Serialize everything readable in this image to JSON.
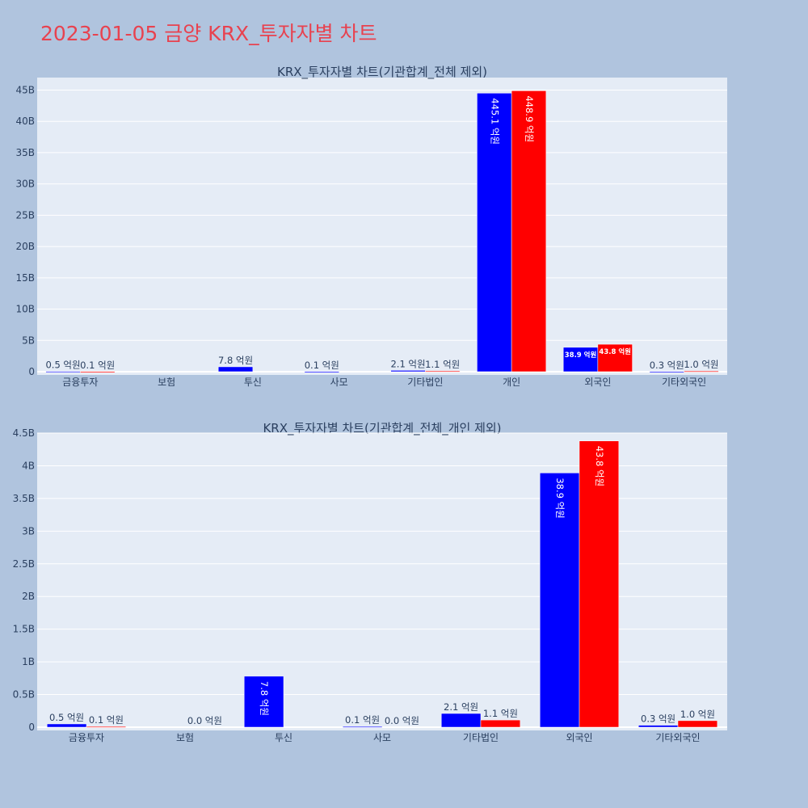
{
  "title": "2023-01-05 금양 KRX_투자자별 차트",
  "colors": {
    "sell": "#0000ff",
    "buy": "#ff0000",
    "plot_bg": "#e5ecf6",
    "page_bg": "#b0c4de",
    "title": "#e8424f"
  },
  "chart_data": [
    {
      "type": "bar",
      "title": "KRX_투자자별 차트(기관합계_전체 제외)",
      "categories": [
        "금융투자",
        "보험",
        "투신",
        "사모",
        "기타법인",
        "개인",
        "외국인",
        "기타외국인"
      ],
      "ylim": [
        0,
        47000000000
      ],
      "y_ticks": [
        0,
        5000000000,
        10000000000,
        15000000000,
        20000000000,
        25000000000,
        30000000000,
        35000000000,
        40000000000,
        45000000000
      ],
      "y_tick_labels": [
        "0",
        "5B",
        "10B",
        "15B",
        "20B",
        "25B",
        "30B",
        "35B",
        "40B",
        "45B"
      ],
      "grid": true,
      "series": [
        {
          "color": "#0000ff",
          "values": [
            50000000,
            0,
            780000000,
            10000000,
            210000000,
            44510000000,
            3890000000,
            30000000
          ],
          "labels": [
            "0.5 억원",
            "",
            "7.8 억원",
            "0.1 억원",
            "2.1 억원",
            "445.1 억원",
            "38.9 억원",
            "0.3 억원"
          ]
        },
        {
          "color": "#ff0000",
          "values": [
            10000000,
            0,
            0,
            0,
            110000000,
            44890000000,
            4380000000,
            100000000
          ],
          "labels": [
            "0.1 억원",
            "",
            "",
            "",
            "1.1 억원",
            "448.9 억원",
            "43.8 억원",
            "1.0 억원"
          ]
        }
      ]
    },
    {
      "type": "bar",
      "title": "KRX_투자자별 차트(기관합계_전체_개인 제외)",
      "categories": [
        "금융투자",
        "보험",
        "투신",
        "사모",
        "기타법인",
        "외국인",
        "기타외국인"
      ],
      "ylim": [
        0,
        4500000000
      ],
      "y_ticks": [
        0,
        500000000,
        1000000000,
        1500000000,
        2000000000,
        2500000000,
        3000000000,
        3500000000,
        4000000000,
        4500000000
      ],
      "y_tick_labels": [
        "0",
        "0.5B",
        "1B",
        "1.5B",
        "2B",
        "2.5B",
        "3B",
        "3.5B",
        "4B",
        "4.5B"
      ],
      "grid": true,
      "series": [
        {
          "color": "#0000ff",
          "values": [
            50000000,
            0,
            780000000,
            10000000,
            210000000,
            3890000000,
            30000000
          ],
          "labels": [
            "0.5 억원",
            "",
            "7.8 억원",
            "0.1 억원",
            "2.1 억원",
            "38.9 억원",
            "0.3 억원"
          ]
        },
        {
          "color": "#ff0000",
          "values": [
            10000000,
            0,
            0,
            0,
            110000000,
            4380000000,
            100000000
          ],
          "labels": [
            "0.1 억원",
            "0.0 억원",
            "",
            "0.0 억원",
            "1.1 억원",
            "43.8 억원",
            "1.0 억원"
          ]
        }
      ]
    }
  ]
}
